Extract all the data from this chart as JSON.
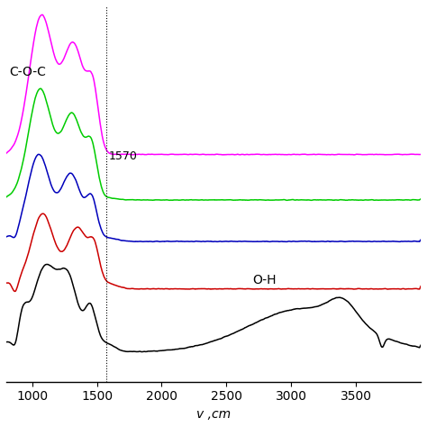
{
  "title": "",
  "xlabel": "v ,cm",
  "ylabel": "",
  "xlim": [
    800,
    4000
  ],
  "xticks": [
    1000,
    1500,
    2000,
    2500,
    3000,
    3500
  ],
  "background_color": "#ffffff",
  "annotation_1570": "1570",
  "annotation_coc": "C-O-C",
  "annotation_oh": "O-H",
  "colors": {
    "magenta": "#ff00ff",
    "green": "#00cc00",
    "blue": "#0000bb",
    "red": "#cc0000",
    "black": "#000000"
  },
  "line_width": 1.1
}
